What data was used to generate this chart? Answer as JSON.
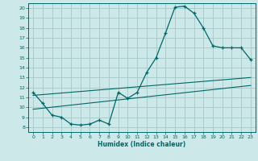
{
  "title": "",
  "xlabel": "Humidex (Indice chaleur)",
  "bg_color": "#cce8e8",
  "grid_color": "#aacccc",
  "line_color": "#006666",
  "xlim": [
    -0.5,
    23.5
  ],
  "ylim": [
    7.5,
    20.5
  ],
  "xticks": [
    0,
    1,
    2,
    3,
    4,
    5,
    6,
    7,
    8,
    9,
    10,
    11,
    12,
    13,
    14,
    15,
    16,
    17,
    18,
    19,
    20,
    21,
    22,
    23
  ],
  "yticks": [
    8,
    9,
    10,
    11,
    12,
    13,
    14,
    15,
    16,
    17,
    18,
    19,
    20
  ],
  "line1_x": [
    0,
    1,
    2,
    3,
    4,
    5,
    6,
    7,
    8,
    9,
    10,
    11,
    12,
    13,
    14,
    15,
    16,
    17,
    18,
    19,
    20,
    21,
    22,
    23
  ],
  "line1_y": [
    11.5,
    10.4,
    9.2,
    9.0,
    8.3,
    8.2,
    8.3,
    8.7,
    8.3,
    11.5,
    10.9,
    11.5,
    13.5,
    15.0,
    17.5,
    20.1,
    20.2,
    19.5,
    18.0,
    16.2,
    16.0,
    16.0,
    16.0,
    14.8
  ],
  "line2_x": [
    0,
    23
  ],
  "line2_y": [
    11.2,
    13.0
  ],
  "line3_x": [
    0,
    23
  ],
  "line3_y": [
    9.8,
    12.2
  ]
}
